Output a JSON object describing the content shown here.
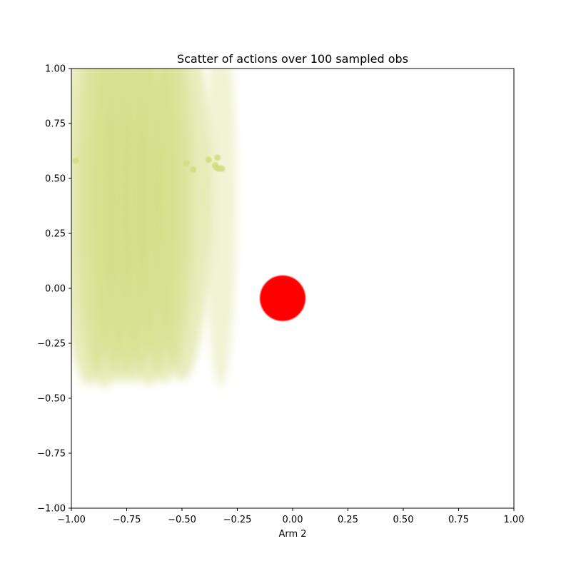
{
  "chart_data": {
    "type": "scatter",
    "title": "Scatter of actions over 100 sampled obs",
    "xlabel": "Arm 2",
    "ylabel": "",
    "xlim": [
      -1.0,
      1.0
    ],
    "ylim": [
      -1.0,
      1.0
    ],
    "x_ticks": [
      "−1.00",
      "−0.75",
      "−0.50",
      "−0.25",
      "0.00",
      "0.25",
      "0.50",
      "0.75",
      "1.00"
    ],
    "y_ticks": [
      "1.00",
      "0.75",
      "0.50",
      "0.25",
      "0.00",
      "−0.25",
      "−0.50",
      "−0.75",
      "−1.00"
    ],
    "grid": false,
    "series": [
      {
        "color": "#d3dd83",
        "points": [
          {
            "x": -0.98,
            "y": 0.58
          },
          {
            "x": -0.48,
            "y": 0.57
          },
          {
            "x": -0.45,
            "y": 0.54
          },
          {
            "x": -0.38,
            "y": 0.585
          },
          {
            "x": -0.34,
            "y": 0.595
          },
          {
            "x": -0.35,
            "y": 0.56
          },
          {
            "x": -0.345,
            "y": 0.55
          },
          {
            "x": -0.335,
            "y": 0.545
          },
          {
            "x": -0.32,
            "y": 0.545
          }
        ],
        "clouds": [
          {
            "x": -0.92,
            "y_bottom": -0.44
          },
          {
            "x": -0.85,
            "y_bottom": -0.45
          },
          {
            "x": -0.78,
            "y_bottom": -0.43
          },
          {
            "x": -0.72,
            "y_bottom": -0.43
          },
          {
            "x": -0.65,
            "y_bottom": -0.44
          },
          {
            "x": -0.58,
            "y_bottom": -0.43
          },
          {
            "x": -0.5,
            "y_bottom": -0.42
          },
          {
            "x": -0.325,
            "y_bottom": -0.45
          }
        ]
      },
      {
        "color": "#ff0000",
        "points": [
          {
            "x": -0.045,
            "y": -0.045
          }
        ]
      }
    ]
  }
}
